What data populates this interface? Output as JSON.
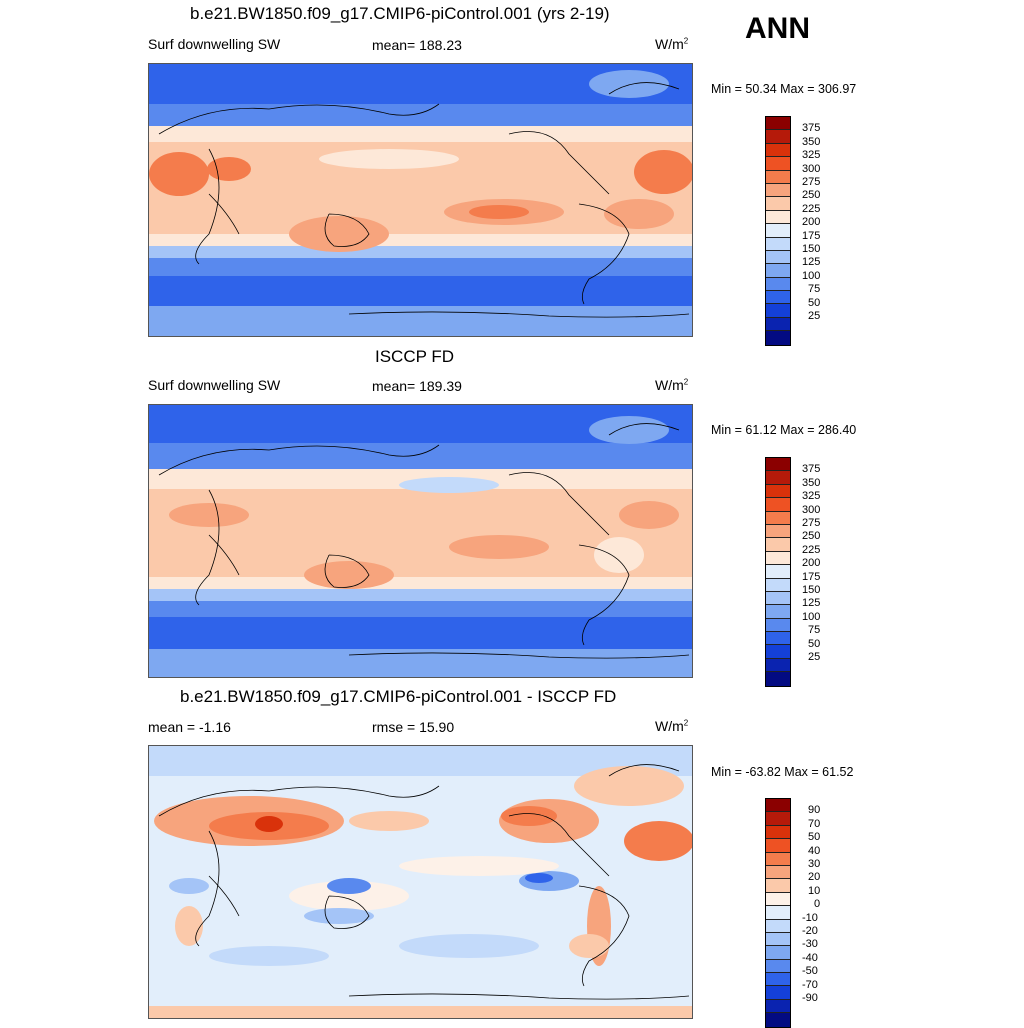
{
  "figure_label": "ANN",
  "panels": [
    {
      "title": "b.e21.BW1850.f09_g17.CMIP6-piControl.001 (yrs 2-19)",
      "left_label": "Surf downwelling SW",
      "center_label": "mean= 188.23",
      "units_base": "W/m",
      "units_exp": "2",
      "minmax": "Min =  50.34 Max = 306.97",
      "colorbar": {
        "colors": [
          "#8b0000",
          "#b51a0a",
          "#d9320b",
          "#ee5223",
          "#f47c4c",
          "#f7a47d",
          "#fbc9aa",
          "#fde8d8",
          "#e2eefb",
          "#c3dafa",
          "#a4c4f7",
          "#7ea8f1",
          "#5989ee",
          "#2f63ea",
          "#1440d8",
          "#0a23b0",
          "#030b82"
        ],
        "ticks": [
          "375",
          "350",
          "325",
          "300",
          "275",
          "250",
          "225",
          "200",
          "175",
          "150",
          "125",
          "100",
          "75",
          "50",
          "25"
        ]
      }
    },
    {
      "title": "ISCCP FD",
      "left_label": "Surf downwelling SW",
      "center_label": "mean= 189.39",
      "units_base": "W/m",
      "units_exp": "2",
      "minmax": "Min =  61.12 Max = 286.40",
      "colorbar": {
        "colors": [
          "#8b0000",
          "#b51a0a",
          "#d9320b",
          "#ee5223",
          "#f47c4c",
          "#f7a47d",
          "#fbc9aa",
          "#fde8d8",
          "#e2eefb",
          "#c3dafa",
          "#a4c4f7",
          "#7ea8f1",
          "#5989ee",
          "#2f63ea",
          "#1440d8",
          "#0a23b0",
          "#030b82"
        ],
        "ticks": [
          "375",
          "350",
          "325",
          "300",
          "275",
          "250",
          "225",
          "200",
          "175",
          "150",
          "125",
          "100",
          "75",
          "50",
          "25"
        ]
      }
    },
    {
      "title": "b.e21.BW1850.f09_g17.CMIP6-piControl.001 - ISCCP FD",
      "left_label": "mean =  -1.16",
      "center_label": "rmse =  15.90",
      "units_base": "W/m",
      "units_exp": "2",
      "minmax": "Min = -63.82 Max =  61.52",
      "colorbar": {
        "colors": [
          "#8b0000",
          "#b51a0a",
          "#d9320b",
          "#ee5223",
          "#f47c4c",
          "#f7a47d",
          "#fbc9aa",
          "#fdf1e8",
          "#e2eefb",
          "#c3dafa",
          "#a4c4f7",
          "#7ea8f1",
          "#5989ee",
          "#2f63ea",
          "#1440d8",
          "#0a23b0",
          "#030b82"
        ],
        "ticks": [
          "90",
          "70",
          "50",
          "40",
          "30",
          "20",
          "10",
          "0",
          "-10",
          "-20",
          "-30",
          "-40",
          "-50",
          "-70",
          "-90"
        ]
      }
    }
  ]
}
